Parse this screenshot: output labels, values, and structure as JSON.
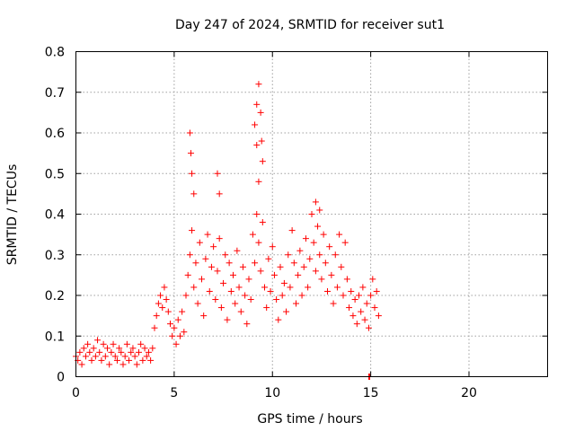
{
  "chart_data": {
    "type": "scatter",
    "title": "Day 247 of 2024, SRMTID for receiver sut1",
    "xlabel": "GPS time / hours",
    "ylabel": "SRMTID / TECUs",
    "xlim": [
      0,
      24
    ],
    "ylim": [
      0,
      0.8
    ],
    "xticks": [
      0,
      5,
      10,
      15,
      20
    ],
    "yticks": [
      0,
      0.1,
      0.2,
      0.3,
      0.4,
      0.5,
      0.6,
      0.7,
      0.8
    ],
    "xtick_labels": [
      "0",
      "5",
      "10",
      "15",
      "20"
    ],
    "ytick_labels": [
      "0",
      "0.1",
      "0.2",
      "0.3",
      "0.4",
      "0.5",
      "0.6",
      "0.7",
      "0.8"
    ],
    "grid": true,
    "marker": "+",
    "color": "#ff0000",
    "series": [
      {
        "name": "sut1",
        "x": [
          0.0,
          0.1,
          0.2,
          0.3,
          0.4,
          0.5,
          0.6,
          0.7,
          0.8,
          0.9,
          1.0,
          1.1,
          1.2,
          1.3,
          1.4,
          1.5,
          1.6,
          1.7,
          1.8,
          1.9,
          2.0,
          2.1,
          2.2,
          2.3,
          2.4,
          2.5,
          2.6,
          2.7,
          2.8,
          2.9,
          3.0,
          3.1,
          3.2,
          3.3,
          3.4,
          3.5,
          3.6,
          3.7,
          3.8,
          3.9,
          4.0,
          4.1,
          4.2,
          4.3,
          4.4,
          4.5,
          4.6,
          4.7,
          4.8,
          4.9,
          5.0,
          5.1,
          5.2,
          5.3,
          5.4,
          5.5,
          5.6,
          5.7,
          5.8,
          5.9,
          6.0,
          6.1,
          6.2,
          6.3,
          6.4,
          6.5,
          6.6,
          6.7,
          6.8,
          6.9,
          7.0,
          7.1,
          7.2,
          7.3,
          7.4,
          7.5,
          7.6,
          7.7,
          7.8,
          7.9,
          8.0,
          8.1,
          8.2,
          8.3,
          8.4,
          8.5,
          8.6,
          8.7,
          8.8,
          8.9,
          9.0,
          9.1,
          9.2,
          9.3,
          9.4,
          9.5,
          9.6,
          9.7,
          9.8,
          9.9,
          10.0,
          10.1,
          10.2,
          10.3,
          10.4,
          10.5,
          10.6,
          10.7,
          10.8,
          10.9,
          11.0,
          11.1,
          11.2,
          11.3,
          11.4,
          11.5,
          11.6,
          11.7,
          11.8,
          11.9,
          12.0,
          12.1,
          12.2,
          12.3,
          12.4,
          12.5,
          12.6,
          12.7,
          12.8,
          12.9,
          13.0,
          13.1,
          13.2,
          13.3,
          13.4,
          13.5,
          13.6,
          13.7,
          13.8,
          13.9,
          14.0,
          14.1,
          14.2,
          14.3,
          14.4,
          14.5,
          14.6,
          14.7,
          14.8,
          14.9,
          15.0,
          15.1,
          15.2,
          15.3,
          15.4,
          5.8,
          5.85,
          5.9,
          6.0,
          7.2,
          7.3,
          9.1,
          9.2,
          9.3,
          9.4,
          9.45,
          9.5,
          9.2,
          9.3,
          12.2,
          12.4,
          14.9,
          14.95
        ],
        "y": [
          0.05,
          0.04,
          0.06,
          0.03,
          0.07,
          0.05,
          0.08,
          0.06,
          0.04,
          0.07,
          0.05,
          0.09,
          0.06,
          0.04,
          0.08,
          0.05,
          0.07,
          0.03,
          0.06,
          0.08,
          0.05,
          0.04,
          0.07,
          0.06,
          0.03,
          0.05,
          0.08,
          0.04,
          0.06,
          0.07,
          0.05,
          0.03,
          0.06,
          0.08,
          0.04,
          0.07,
          0.05,
          0.06,
          0.04,
          0.07,
          0.12,
          0.15,
          0.18,
          0.2,
          0.17,
          0.22,
          0.19,
          0.16,
          0.13,
          0.1,
          0.12,
          0.08,
          0.14,
          0.1,
          0.16,
          0.11,
          0.2,
          0.25,
          0.3,
          0.36,
          0.22,
          0.28,
          0.18,
          0.33,
          0.24,
          0.15,
          0.29,
          0.35,
          0.21,
          0.27,
          0.32,
          0.19,
          0.26,
          0.34,
          0.17,
          0.23,
          0.3,
          0.14,
          0.28,
          0.21,
          0.25,
          0.18,
          0.31,
          0.22,
          0.16,
          0.27,
          0.2,
          0.13,
          0.24,
          0.19,
          0.35,
          0.28,
          0.4,
          0.33,
          0.26,
          0.38,
          0.22,
          0.17,
          0.29,
          0.21,
          0.32,
          0.25,
          0.19,
          0.14,
          0.27,
          0.2,
          0.23,
          0.16,
          0.3,
          0.22,
          0.36,
          0.28,
          0.18,
          0.25,
          0.31,
          0.2,
          0.27,
          0.34,
          0.22,
          0.29,
          0.4,
          0.33,
          0.26,
          0.37,
          0.3,
          0.24,
          0.35,
          0.28,
          0.21,
          0.32,
          0.25,
          0.18,
          0.3,
          0.22,
          0.35,
          0.27,
          0.2,
          0.33,
          0.24,
          0.17,
          0.21,
          0.15,
          0.19,
          0.13,
          0.2,
          0.16,
          0.22,
          0.14,
          0.18,
          0.12,
          0.2,
          0.24,
          0.17,
          0.21,
          0.15,
          0.6,
          0.55,
          0.5,
          0.45,
          0.5,
          0.45,
          0.62,
          0.67,
          0.72,
          0.65,
          0.58,
          0.53,
          0.57,
          0.48,
          0.43,
          0.41,
          0.0,
          0.0
        ]
      }
    ]
  }
}
